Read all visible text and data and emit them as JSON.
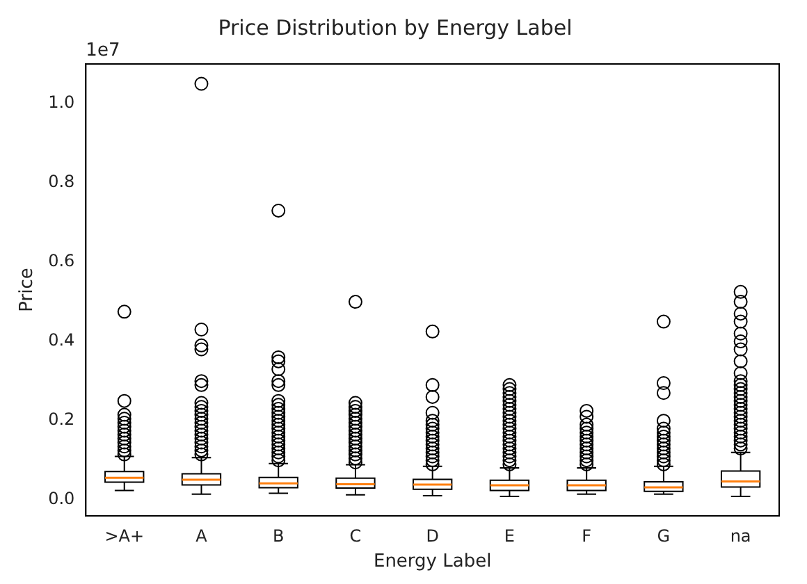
{
  "chart_data": {
    "type": "box",
    "title": "Price Distribution by Energy Label",
    "xlabel": "Energy Label",
    "ylabel": "Price",
    "annotations": [
      "1e7"
    ],
    "categories": [
      ">A+",
      "A",
      "B",
      "C",
      "D",
      "E",
      "F",
      "G",
      "na"
    ],
    "ylim": [
      -0.04,
      1.1
    ],
    "yticks": [
      {
        "value": 0,
        "label": "0.0"
      },
      0.2,
      0.4,
      0.6,
      0.8,
      {
        "value": 1,
        "label": "1.0"
      }
    ],
    "boxes": [
      {
        "low": 0.024,
        "q1": 0.045,
        "median": 0.056,
        "q3": 0.072,
        "high": 0.11,
        "outliers": [
          0.115,
          0.125,
          0.135,
          0.145,
          0.155,
          0.165,
          0.175,
          0.185,
          0.195,
          0.205,
          0.215,
          0.25,
          0.475
        ]
      },
      {
        "low": 0.015,
        "q1": 0.038,
        "median": 0.051,
        "q3": 0.066,
        "high": 0.107,
        "outliers": [
          0.115,
          0.125,
          0.135,
          0.145,
          0.155,
          0.165,
          0.175,
          0.185,
          0.195,
          0.205,
          0.215,
          0.225,
          0.235,
          0.245,
          0.29,
          0.3,
          0.38,
          0.39,
          0.43,
          1.05
        ]
      },
      {
        "low": 0.017,
        "q1": 0.031,
        "median": 0.042,
        "q3": 0.057,
        "high": 0.092,
        "outliers": [
          0.1,
          0.11,
          0.12,
          0.13,
          0.14,
          0.15,
          0.16,
          0.17,
          0.18,
          0.19,
          0.2,
          0.21,
          0.22,
          0.23,
          0.24,
          0.25,
          0.29,
          0.3,
          0.33,
          0.35,
          0.36,
          0.73
        ]
      },
      {
        "low": 0.013,
        "q1": 0.03,
        "median": 0.04,
        "q3": 0.055,
        "high": 0.089,
        "outliers": [
          0.095,
          0.105,
          0.115,
          0.125,
          0.135,
          0.145,
          0.155,
          0.165,
          0.175,
          0.185,
          0.195,
          0.205,
          0.215,
          0.225,
          0.235,
          0.245,
          0.5
        ]
      },
      {
        "low": 0.011,
        "q1": 0.027,
        "median": 0.039,
        "q3": 0.052,
        "high": 0.085,
        "outliers": [
          0.09,
          0.1,
          0.11,
          0.12,
          0.13,
          0.14,
          0.15,
          0.16,
          0.17,
          0.18,
          0.19,
          0.2,
          0.22,
          0.26,
          0.29,
          0.425
        ]
      },
      {
        "low": 0.009,
        "q1": 0.024,
        "median": 0.037,
        "q3": 0.05,
        "high": 0.081,
        "outliers": [
          0.09,
          0.1,
          0.11,
          0.12,
          0.13,
          0.14,
          0.15,
          0.16,
          0.17,
          0.18,
          0.19,
          0.2,
          0.21,
          0.22,
          0.23,
          0.24,
          0.25,
          0.26,
          0.27,
          0.28,
          0.29
        ]
      },
      {
        "low": 0.015,
        "q1": 0.024,
        "median": 0.037,
        "q3": 0.05,
        "high": 0.081,
        "outliers": [
          0.09,
          0.1,
          0.11,
          0.12,
          0.13,
          0.14,
          0.15,
          0.16,
          0.17,
          0.18,
          0.19,
          0.21,
          0.225
        ]
      },
      {
        "low": 0.015,
        "q1": 0.022,
        "median": 0.032,
        "q3": 0.046,
        "high": 0.085,
        "outliers": [
          0.09,
          0.1,
          0.11,
          0.12,
          0.13,
          0.14,
          0.15,
          0.16,
          0.17,
          0.18,
          0.2,
          0.27,
          0.295,
          0.45
        ]
      },
      {
        "low": 0.009,
        "q1": 0.033,
        "median": 0.047,
        "q3": 0.073,
        "high": 0.12,
        "outliers": [
          0.13,
          0.14,
          0.15,
          0.16,
          0.17,
          0.18,
          0.19,
          0.2,
          0.21,
          0.22,
          0.23,
          0.24,
          0.25,
          0.26,
          0.27,
          0.28,
          0.29,
          0.3,
          0.32,
          0.35,
          0.38,
          0.4,
          0.42,
          0.45,
          0.47,
          0.5,
          0.525
        ]
      }
    ]
  }
}
